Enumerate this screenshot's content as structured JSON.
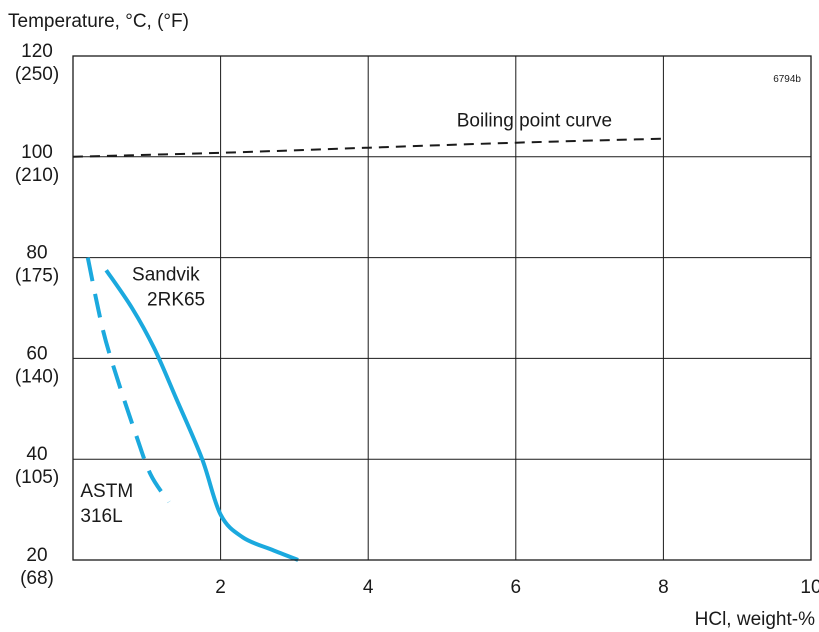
{
  "chart_data": {
    "type": "line",
    "ylabel": "Temperature, °C, (°F)",
    "xlabel": "HCl, weight-%",
    "code": "6794b",
    "xlim": [
      0,
      10
    ],
    "ylim": [
      20,
      120
    ],
    "grid": true,
    "x_ticks": [
      {
        "value": 2,
        "label": "2"
      },
      {
        "value": 4,
        "label": "4"
      },
      {
        "value": 6,
        "label": "6"
      },
      {
        "value": 8,
        "label": "8"
      },
      {
        "value": 10,
        "label": "10"
      }
    ],
    "y_ticks": [
      {
        "value": 120,
        "label": "120",
        "sub": "(250)"
      },
      {
        "value": 100,
        "label": "100",
        "sub": "(210)"
      },
      {
        "value": 80,
        "label": "80",
        "sub": "(175)"
      },
      {
        "value": 60,
        "label": "60",
        "sub": "(140)"
      },
      {
        "value": 40,
        "label": "40",
        "sub": "(105)"
      },
      {
        "value": 20,
        "label": "20",
        "sub": "(68)"
      }
    ],
    "series": [
      {
        "name": "Boiling point curve",
        "label_lines": [
          "Boiling point curve"
        ],
        "style": "dashed",
        "color": "#1a1a1a",
        "label_at": {
          "x": 5.2,
          "y": 106
        },
        "label_anchor": "start",
        "points": [
          [
            0,
            100
          ],
          [
            2,
            100.8
          ],
          [
            4,
            101.8
          ],
          [
            6,
            102.8
          ],
          [
            8,
            103.6
          ]
        ]
      },
      {
        "name": "Sandvik 2RK65",
        "label_lines": [
          "Sandvik",
          "2RK65"
        ],
        "style": "solid",
        "color": "#1ba9de",
        "label_at": {
          "x": 0.8,
          "y": 75.5
        },
        "label_anchor": "start",
        "points": [
          [
            0.45,
            77.5
          ],
          [
            0.8,
            70
          ],
          [
            1.1,
            62
          ],
          [
            1.4,
            52
          ],
          [
            1.75,
            40
          ],
          [
            2.0,
            29
          ],
          [
            2.3,
            24.5
          ],
          [
            2.7,
            22
          ],
          [
            3.05,
            20
          ]
        ]
      },
      {
        "name": "ASTM 316L",
        "label_lines": [
          "ASTM",
          "316L"
        ],
        "style": "dashed",
        "color": "#1ba9de",
        "label_at": {
          "x": 0.1,
          "y": 32.5
        },
        "label_anchor": "start",
        "points": [
          [
            0.2,
            80
          ],
          [
            0.4,
            66
          ],
          [
            0.6,
            56
          ],
          [
            0.85,
            45
          ],
          [
            1.05,
            37
          ],
          [
            1.3,
            31.5
          ]
        ]
      }
    ]
  }
}
